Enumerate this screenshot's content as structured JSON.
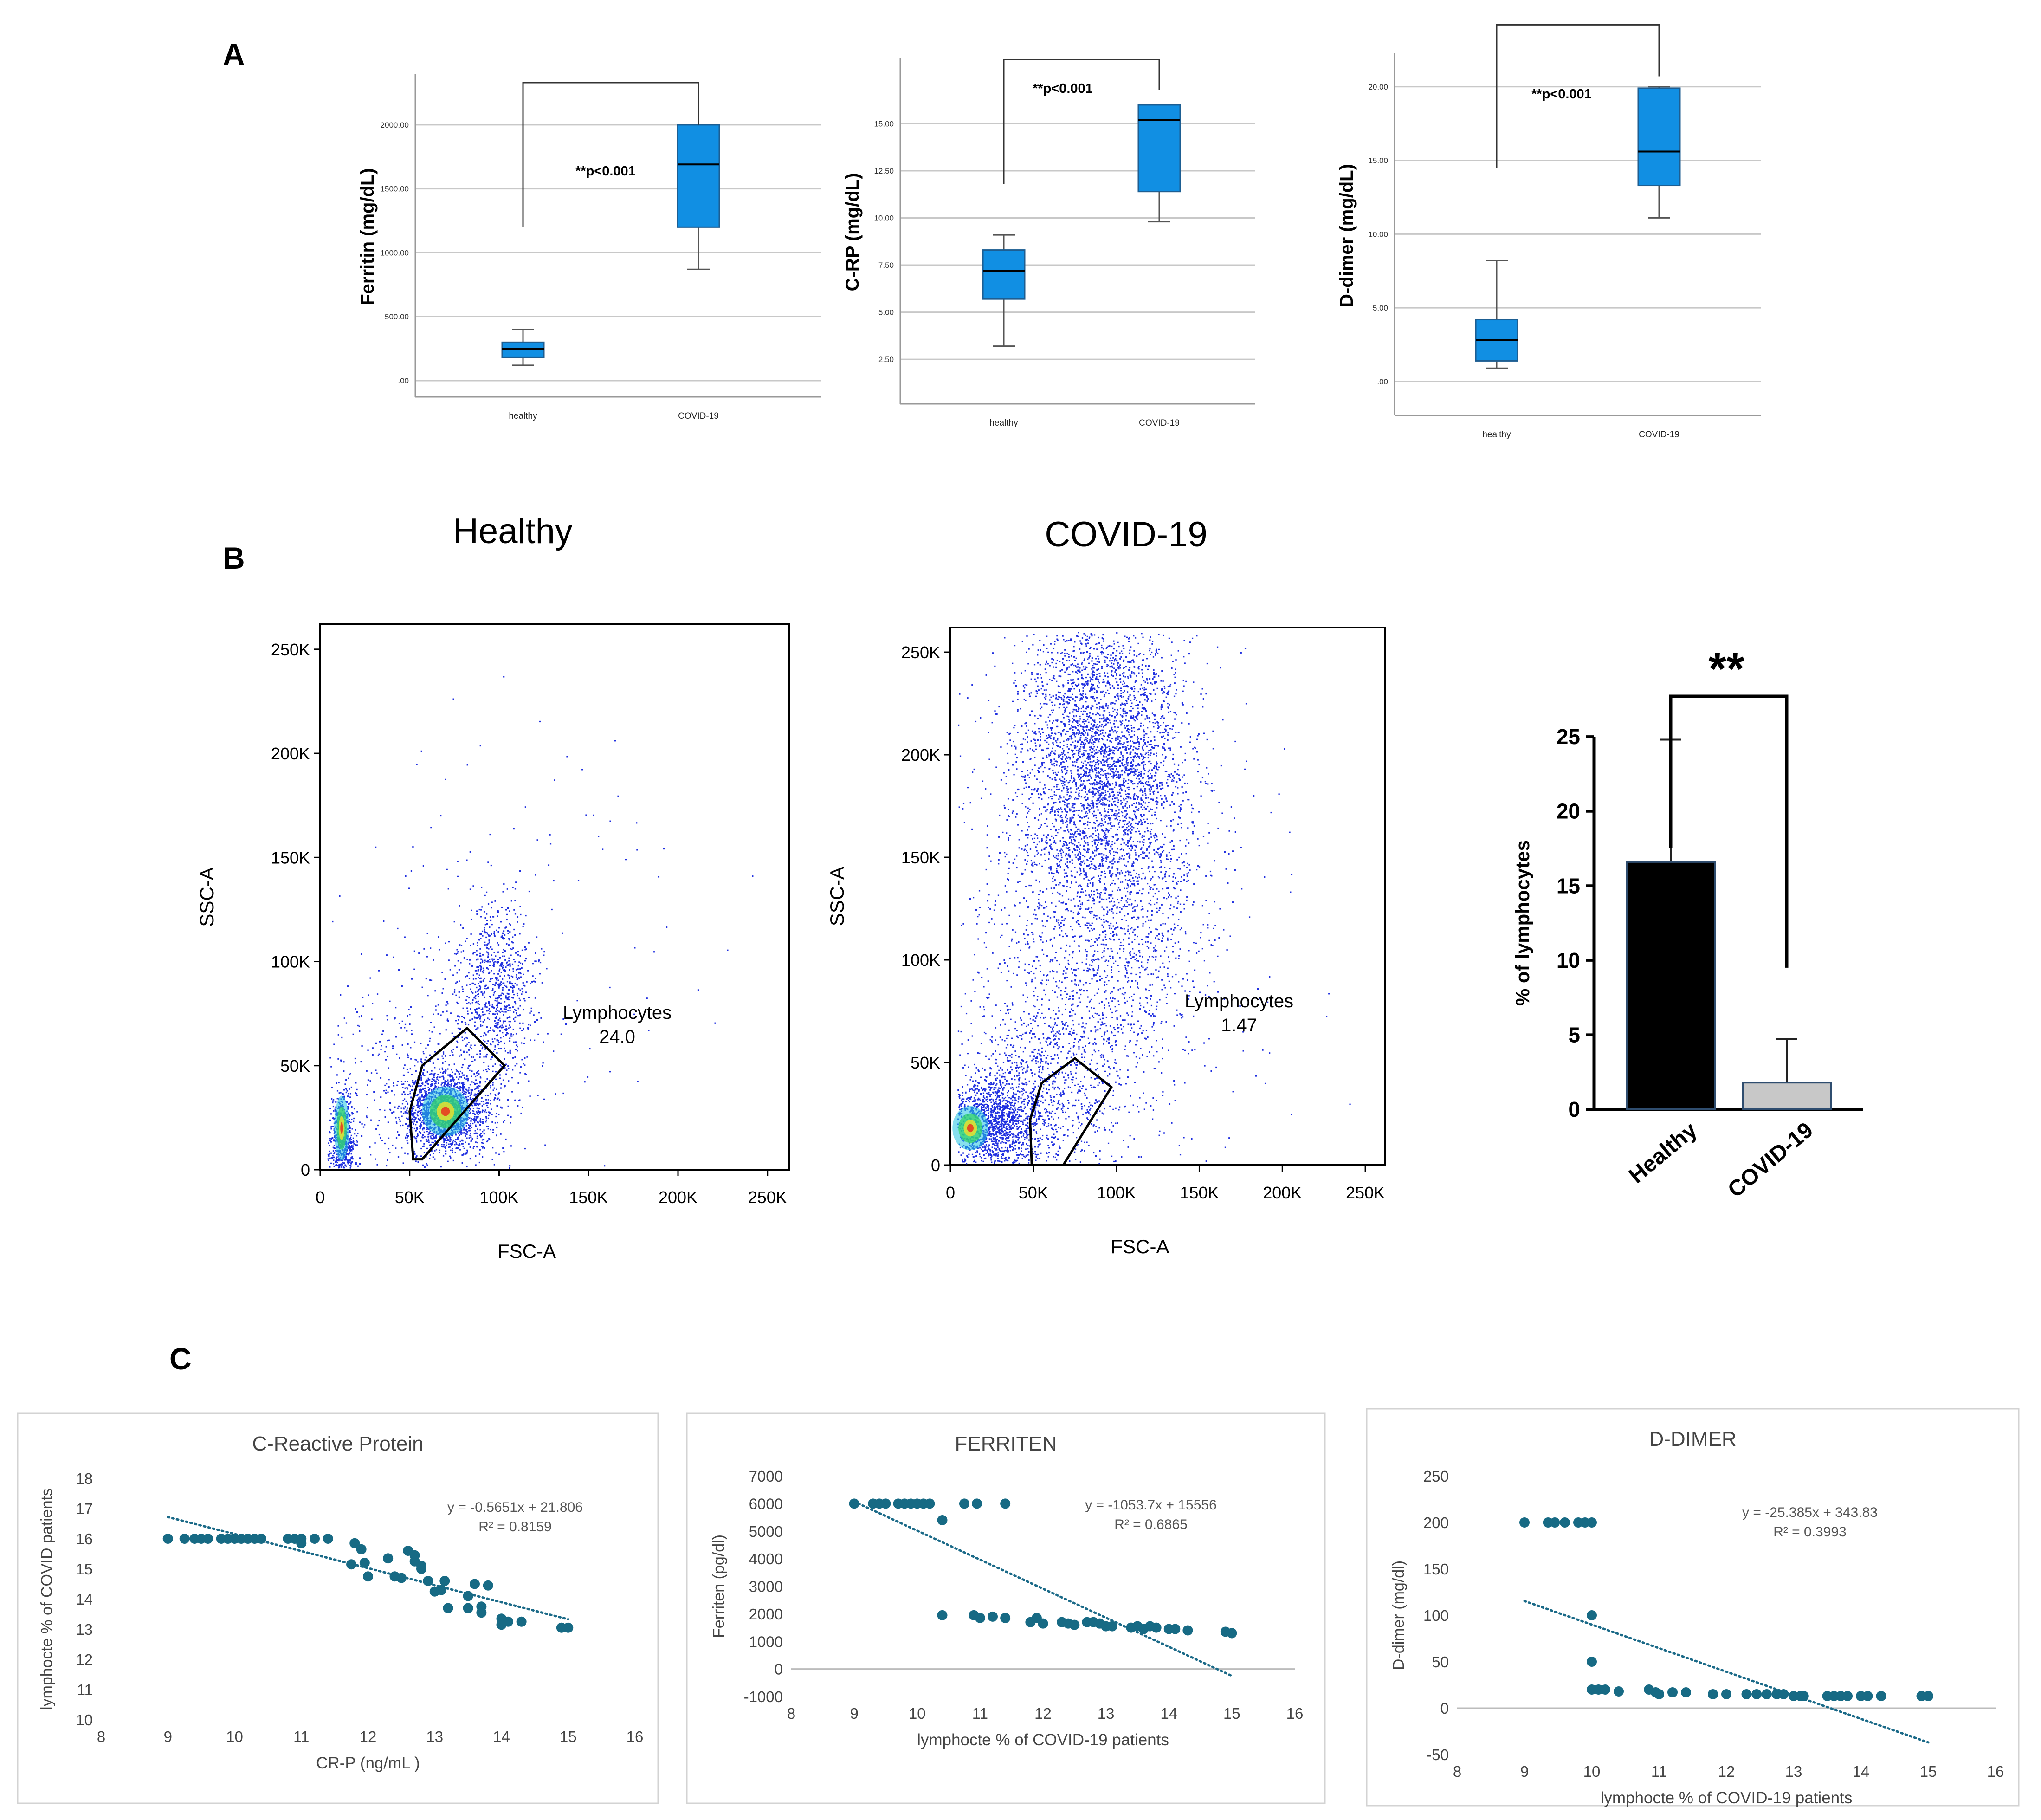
{
  "panels": {
    "a": "A",
    "b": "B",
    "c": "C"
  },
  "box_common": {
    "significance": "**p<0.001",
    "categories": [
      "healthy",
      "COVID-19"
    ],
    "box_color": "#118fe3"
  },
  "flow_common": {
    "xlabel": "FSC-A",
    "ylabel": "SSC-A",
    "gate_label": "Lymphocytes"
  },
  "chart_data": [
    {
      "id": "ferritin-box",
      "type": "box",
      "ylabel": "Ferritin (mg/dL)",
      "ylim": [
        0,
        2250
      ],
      "yticks": [
        0,
        500,
        1000,
        1500,
        2000
      ],
      "ytick_labels": [
        ".00",
        "500.00",
        "1000.00",
        "1500.00",
        "2000.00"
      ],
      "boxes": [
        {
          "category": "healthy",
          "min": 120,
          "q1": 180,
          "median": 250,
          "q3": 300,
          "max": 400
        },
        {
          "category": "COVID-19",
          "min": 870,
          "q1": 1200,
          "median": 1690,
          "q3": 2000,
          "max": 2000
        }
      ],
      "bracket": {
        "healthy_top": 1200,
        "covid_top": 2000,
        "level": 2330
      }
    },
    {
      "id": "crp-box",
      "type": "box",
      "ylabel": "C-RP (mg/dL)",
      "ylim": [
        1.0,
        17.5
      ],
      "yticks": [
        2.5,
        5.0,
        7.5,
        10.0,
        12.5,
        15.0
      ],
      "ytick_labels": [
        "2.50",
        "5.00",
        "7.50",
        "10.00",
        "12.50",
        "15.00"
      ],
      "boxes": [
        {
          "category": "healthy",
          "min": 3.2,
          "q1": 5.7,
          "median": 7.2,
          "q3": 8.3,
          "max": 9.1
        },
        {
          "category": "COVID-19",
          "min": 9.8,
          "q1": 11.4,
          "median": 15.2,
          "q3": 16.0,
          "max": 16.0
        }
      ],
      "bracket": {
        "healthy_top": 11.8,
        "covid_top": 16.8,
        "level": 18.4
      }
    },
    {
      "id": "ddimer-box",
      "type": "box",
      "ylabel": "D-dimer (mg/dL)",
      "ylim": [
        -1.2,
        21.0
      ],
      "yticks": [
        0,
        5,
        10,
        15,
        20
      ],
      "ytick_labels": [
        ".00",
        "5.00",
        "10.00",
        "15.00",
        "20.00"
      ],
      "boxes": [
        {
          "category": "healthy",
          "min": 0.9,
          "q1": 1.4,
          "median": 2.8,
          "q3": 4.2,
          "max": 8.2
        },
        {
          "category": "COVID-19",
          "min": 11.1,
          "q1": 13.3,
          "median": 15.6,
          "q3": 19.9,
          "max": 20.0
        }
      ],
      "bracket": {
        "healthy_top": 14.5,
        "covid_top": 20.7,
        "level": 24.2
      }
    },
    {
      "id": "flow-healthy",
      "type": "scatter",
      "title": "Healthy",
      "xlabel": "FSC-A",
      "ylabel": "SSC-A",
      "gate_value": "24.0",
      "xlim": [
        0,
        262000
      ],
      "ylim": [
        0,
        262000
      ],
      "ticks": [
        0,
        50000,
        100000,
        150000,
        200000,
        250000
      ],
      "tick_labels": [
        "0",
        "50K",
        "100K",
        "150K",
        "200K",
        "250K"
      ],
      "gate": [
        [
          52000,
          5000
        ],
        [
          50000,
          28000
        ],
        [
          57000,
          50000
        ],
        [
          82000,
          68000
        ],
        [
          103000,
          50000
        ],
        [
          57000,
          5000
        ]
      ],
      "clusters": [
        {
          "x": 12000,
          "y": 15000,
          "sx": 3500,
          "sy": 12000,
          "n": 650
        },
        {
          "x": 70000,
          "y": 28000,
          "sx": 12000,
          "sy": 10000,
          "n": 1700
        },
        {
          "x": 97000,
          "y": 85000,
          "sx": 11000,
          "sy": 22000,
          "n": 900
        },
        {
          "x": 55000,
          "y": 45000,
          "sx": 30000,
          "sy": 30000,
          "n": 450
        },
        {
          "x": 95000,
          "y": 110000,
          "sx": 60000,
          "sy": 60000,
          "n": 130
        }
      ],
      "dense": [
        {
          "x": 12000,
          "y": 20000,
          "rx": 3500,
          "ry": 13000
        },
        {
          "x": 70000,
          "y": 28000,
          "rx": 11000,
          "ry": 10000
        }
      ]
    },
    {
      "id": "flow-covid",
      "type": "scatter",
      "title": "COVID-19",
      "xlabel": "FSC-A",
      "ylabel": "SSC-A",
      "gate_value": "1.47",
      "xlim": [
        0,
        262000
      ],
      "ylim": [
        0,
        262000
      ],
      "ticks": [
        0,
        50000,
        100000,
        150000,
        200000,
        250000
      ],
      "tick_labels": [
        "0",
        "50K",
        "100K",
        "150K",
        "200K",
        "250K"
      ],
      "gate": [
        [
          49000,
          0
        ],
        [
          48000,
          22000
        ],
        [
          55000,
          40000
        ],
        [
          75000,
          52000
        ],
        [
          97000,
          38000
        ],
        [
          68000,
          0
        ]
      ],
      "clusters": [
        {
          "x": 25000,
          "y": 20000,
          "sx": 15000,
          "sy": 12000,
          "n": 1400
        },
        {
          "x": 90000,
          "y": 200000,
          "sx": 26000,
          "sy": 38000,
          "n": 3600
        },
        {
          "x": 95000,
          "y": 120000,
          "sx": 30000,
          "sy": 40000,
          "n": 1300
        },
        {
          "x": 60000,
          "y": 40000,
          "sx": 25000,
          "sy": 25000,
          "n": 900
        },
        {
          "x": 70000,
          "y": 110000,
          "sx": 60000,
          "sy": 70000,
          "n": 500
        }
      ],
      "dense": [
        {
          "x": 12000,
          "y": 18000,
          "rx": 9000,
          "ry": 9000
        }
      ]
    },
    {
      "id": "lymph-bar",
      "type": "bar",
      "ylabel": "% of lymphocytes",
      "categories": [
        "Healthy",
        "COVID-19"
      ],
      "values": [
        16.6,
        1.8
      ],
      "errors": [
        8.2,
        2.9
      ],
      "colors": [
        "#000000",
        "#c8c8c8"
      ],
      "ylim": [
        0,
        26
      ],
      "yticks": [
        0,
        5,
        10,
        15,
        20,
        25
      ],
      "significance": "**"
    },
    {
      "id": "crp-scatter",
      "type": "scatter",
      "title": "C-Reactive Protein",
      "xlabel": "CR-P (ng/mL )",
      "ylabel": "lymphocte % of COVID patients",
      "xlim": [
        8,
        16
      ],
      "ylim": [
        10,
        18
      ],
      "xticks": [
        8,
        9,
        10,
        11,
        12,
        13,
        14,
        15,
        16
      ],
      "yticks": [
        10,
        11,
        12,
        13,
        14,
        15,
        16,
        17,
        18
      ],
      "equation": "y = -0.5651x + 21.806",
      "r2": "R² = 0.8159",
      "trend": {
        "slope": -0.5651,
        "intercept": 21.806,
        "x0": 9,
        "x1": 15
      },
      "points": [
        [
          9.0,
          16
        ],
        [
          9.25,
          16
        ],
        [
          9.4,
          16
        ],
        [
          9.5,
          16
        ],
        [
          9.6,
          16
        ],
        [
          9.8,
          16
        ],
        [
          9.9,
          16
        ],
        [
          10.0,
          16
        ],
        [
          10.1,
          16
        ],
        [
          10.2,
          16
        ],
        [
          10.3,
          16
        ],
        [
          10.4,
          16
        ],
        [
          10.8,
          16
        ],
        [
          10.9,
          16
        ],
        [
          11.0,
          16
        ],
        [
          11.0,
          15.85
        ],
        [
          11.2,
          16
        ],
        [
          11.4,
          16
        ],
        [
          11.8,
          15.85
        ],
        [
          11.9,
          15.65
        ],
        [
          11.95,
          15.2
        ],
        [
          11.75,
          15.15
        ],
        [
          12.0,
          14.75
        ],
        [
          12.3,
          15.35
        ],
        [
          12.4,
          14.75
        ],
        [
          12.5,
          14.7
        ],
        [
          12.6,
          15.6
        ],
        [
          12.7,
          15.45
        ],
        [
          12.7,
          15.25
        ],
        [
          12.8,
          15.1
        ],
        [
          12.8,
          15.0
        ],
        [
          12.9,
          14.6
        ],
        [
          13.0,
          14.25
        ],
        [
          13.1,
          14.3
        ],
        [
          13.15,
          14.6
        ],
        [
          13.2,
          13.7
        ],
        [
          13.5,
          14.1
        ],
        [
          13.5,
          13.7
        ],
        [
          13.6,
          14.5
        ],
        [
          13.7,
          13.75
        ],
        [
          13.7,
          13.55
        ],
        [
          13.8,
          14.45
        ],
        [
          14.0,
          13.35
        ],
        [
          14.0,
          13.15
        ],
        [
          14.1,
          13.25
        ],
        [
          14.3,
          13.25
        ],
        [
          14.9,
          13.05
        ],
        [
          15.0,
          13.05
        ]
      ]
    },
    {
      "id": "ferriten-scatter",
      "type": "scatter",
      "title": "FERRITEN",
      "xlabel": "lymphocte % of COVID-19 patients",
      "ylabel": "Ferriten (pg/dl)",
      "xlim": [
        8,
        16
      ],
      "ylim": [
        -1000,
        7000
      ],
      "xticks": [
        8,
        9,
        10,
        11,
        12,
        13,
        14,
        15,
        16
      ],
      "yticks": [
        -1000,
        0,
        1000,
        2000,
        3000,
        4000,
        5000,
        6000,
        7000
      ],
      "equation": "y = -1053.7x + 15556",
      "r2": "R² = 0.6865",
      "trend": {
        "slope": -1053.7,
        "intercept": 15556,
        "x0": 9,
        "x1": 15
      },
      "points": [
        [
          9.0,
          6000
        ],
        [
          9.3,
          6000
        ],
        [
          9.4,
          6000
        ],
        [
          9.5,
          6000
        ],
        [
          9.7,
          6000
        ],
        [
          9.8,
          6000
        ],
        [
          9.9,
          6000
        ],
        [
          10.0,
          6000
        ],
        [
          10.1,
          6000
        ],
        [
          10.2,
          6000
        ],
        [
          10.4,
          5400
        ],
        [
          10.75,
          6000
        ],
        [
          10.95,
          6000
        ],
        [
          11.4,
          6000
        ],
        [
          10.4,
          1950
        ],
        [
          10.9,
          1950
        ],
        [
          11.0,
          1850
        ],
        [
          11.2,
          1900
        ],
        [
          11.4,
          1850
        ],
        [
          11.8,
          1700
        ],
        [
          11.9,
          1850
        ],
        [
          12.0,
          1650
        ],
        [
          12.3,
          1700
        ],
        [
          12.4,
          1650
        ],
        [
          12.5,
          1600
        ],
        [
          12.7,
          1700
        ],
        [
          12.8,
          1700
        ],
        [
          12.9,
          1650
        ],
        [
          13.0,
          1550
        ],
        [
          13.1,
          1550
        ],
        [
          13.4,
          1500
        ],
        [
          13.5,
          1550
        ],
        [
          13.6,
          1450
        ],
        [
          13.7,
          1550
        ],
        [
          13.8,
          1500
        ],
        [
          14.0,
          1450
        ],
        [
          14.1,
          1450
        ],
        [
          14.3,
          1400
        ],
        [
          14.9,
          1350
        ],
        [
          15.0,
          1300
        ]
      ]
    },
    {
      "id": "ddimer-scatter",
      "type": "scatter",
      "title": "D-DIMER",
      "xlabel": "lymphocte % of COVID-19 patients",
      "ylabel": "D-dimer (mg/dl)",
      "xlim": [
        8,
        16
      ],
      "ylim": [
        -50,
        250
      ],
      "xticks": [
        8,
        9,
        10,
        11,
        12,
        13,
        14,
        15,
        16
      ],
      "yticks": [
        -50,
        0,
        50,
        100,
        150,
        200,
        250
      ],
      "equation": "y = -25.385x + 343.83",
      "r2": "R² = 0.3993",
      "trend": {
        "slope": -25.385,
        "intercept": 343.83,
        "x0": 9,
        "x1": 15
      },
      "points": [
        [
          9.0,
          200
        ],
        [
          9.35,
          200
        ],
        [
          9.45,
          200
        ],
        [
          9.6,
          200
        ],
        [
          9.8,
          200
        ],
        [
          9.9,
          200
        ],
        [
          10.0,
          200
        ],
        [
          10.0,
          100
        ],
        [
          10.0,
          50
        ],
        [
          10.0,
          20
        ],
        [
          10.1,
          20
        ],
        [
          10.2,
          20
        ],
        [
          10.4,
          18
        ],
        [
          10.85,
          20
        ],
        [
          10.95,
          17
        ],
        [
          11.0,
          15
        ],
        [
          11.2,
          17
        ],
        [
          11.4,
          17
        ],
        [
          11.8,
          15
        ],
        [
          12.0,
          15
        ],
        [
          12.3,
          15
        ],
        [
          12.45,
          15
        ],
        [
          12.6,
          15
        ],
        [
          12.75,
          15
        ],
        [
          12.85,
          15
        ],
        [
          13.0,
          13
        ],
        [
          13.1,
          13
        ],
        [
          13.15,
          13
        ],
        [
          13.5,
          13
        ],
        [
          13.6,
          13
        ],
        [
          13.7,
          13
        ],
        [
          13.8,
          13
        ],
        [
          14.0,
          13
        ],
        [
          14.1,
          13
        ],
        [
          14.3,
          13
        ],
        [
          14.9,
          13
        ],
        [
          15.0,
          13
        ]
      ]
    }
  ]
}
